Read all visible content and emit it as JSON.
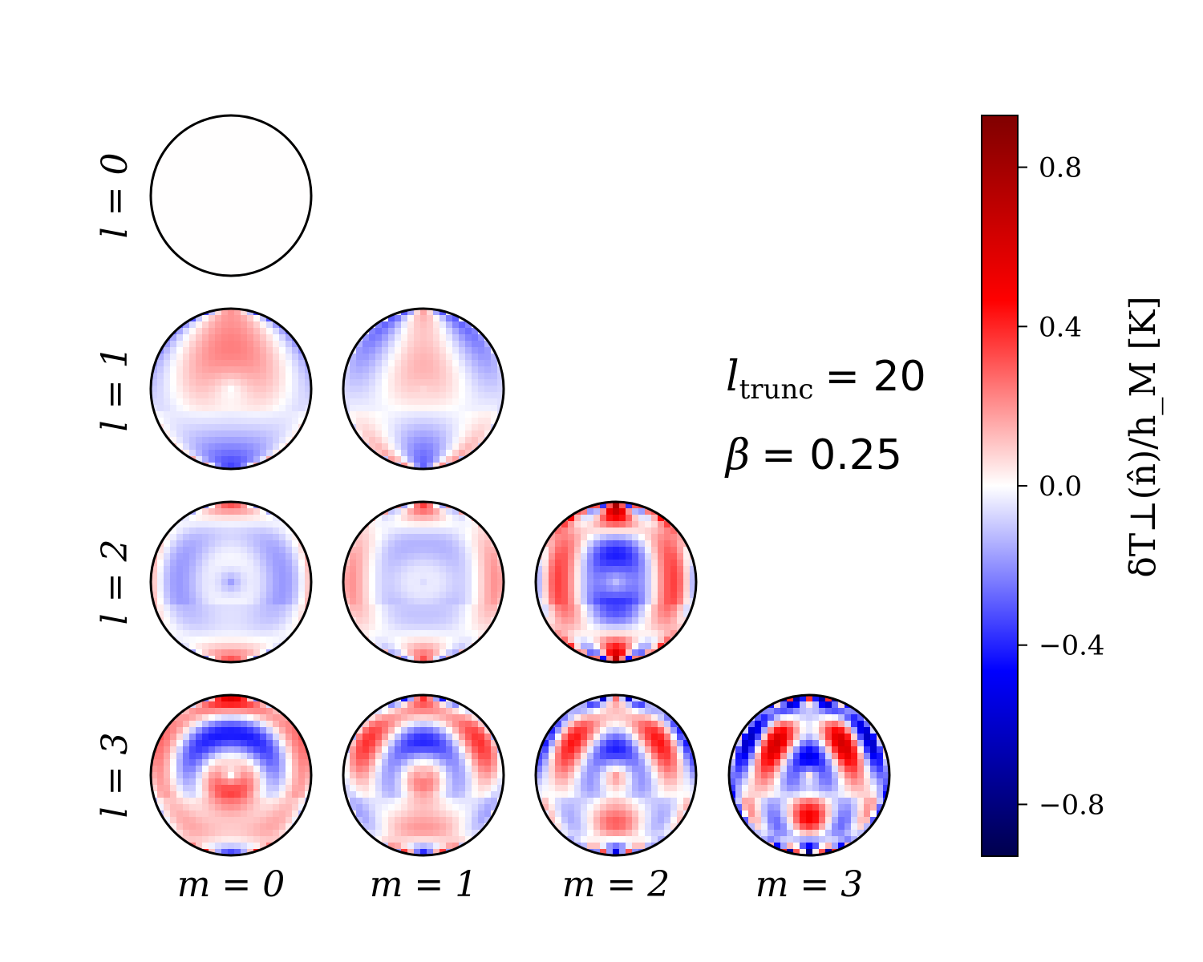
{
  "chart_data": {
    "type": "heatmap",
    "description_grid": "triangular grid of spherical maps indexed by multipole l (rows) and m (columns)",
    "rows": [
      {
        "label": "l = 0",
        "l": 0
      },
      {
        "label": "l = 1",
        "l": 1
      },
      {
        "label": "l = 2",
        "l": 2
      },
      {
        "label": "l = 3",
        "l": 3
      }
    ],
    "columns": [
      {
        "label": "m = 0",
        "m": 0
      },
      {
        "label": "m = 1",
        "m": 1
      },
      {
        "label": "m = 2",
        "m": 2
      },
      {
        "label": "m = 3",
        "m": 3
      }
    ],
    "panels": [
      {
        "l": 0,
        "m": 0,
        "amp": 0.0
      },
      {
        "l": 1,
        "m": 0,
        "amp": 0.3
      },
      {
        "l": 1,
        "m": 1,
        "amp": 0.25
      },
      {
        "l": 2,
        "m": 0,
        "amp": 0.35
      },
      {
        "l": 2,
        "m": 1,
        "amp": 0.3
      },
      {
        "l": 2,
        "m": 2,
        "amp": 0.65
      },
      {
        "l": 3,
        "m": 0,
        "amp": 0.55
      },
      {
        "l": 3,
        "m": 1,
        "amp": 0.5
      },
      {
        "l": 3,
        "m": 2,
        "amp": 0.55
      },
      {
        "l": 3,
        "m": 3,
        "amp": 0.8
      }
    ],
    "annotation": {
      "line1_symbol": "l",
      "line1_sub": "trunc",
      "line1_value": "= 20",
      "line2_symbol": "β",
      "line2_value": "= 0.25"
    },
    "colorbar": {
      "label": "δT⊥(n̂)/h_M [K]",
      "colormap": "seismic",
      "vmin": -0.93,
      "vmax": 0.93,
      "ticks": [
        {
          "value": 0.8,
          "label": "0.8"
        },
        {
          "value": 0.4,
          "label": "0.4"
        },
        {
          "value": 0.0,
          "label": "0.0"
        },
        {
          "value": -0.4,
          "label": "−0.4"
        },
        {
          "value": -0.8,
          "label": "−0.8"
        }
      ]
    }
  }
}
